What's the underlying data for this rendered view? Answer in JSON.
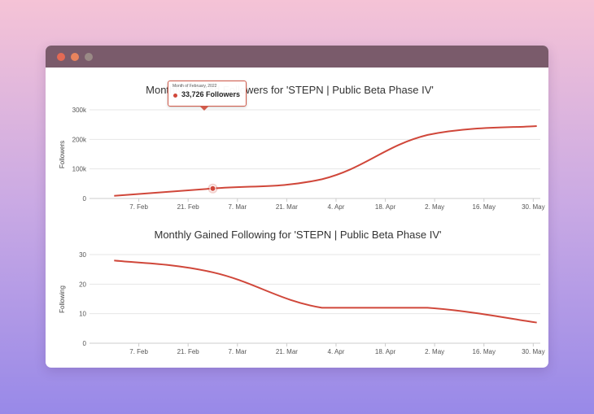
{
  "colors": {
    "line": "#d0473a",
    "grid": "#e6e6e6"
  },
  "tooltip": {
    "header": "Month of February, 2022",
    "value": "33,726 Followers"
  },
  "chart_data": [
    {
      "type": "line",
      "title": "Monthly Gained Followers for 'STEPN | Public Beta Phase IV'",
      "ylabel": "Followers",
      "xlabel": "",
      "ylim": [
        0,
        300000
      ],
      "yticks": [
        0,
        100000,
        200000,
        300000
      ],
      "ytick_labels": [
        "0",
        "100k",
        "200k",
        "300k"
      ],
      "xtick_labels": [
        "7. Feb",
        "21. Feb",
        "7. Mar",
        "21. Mar",
        "4. Apr",
        "18. Apr",
        "2. May",
        "16. May",
        "30. May"
      ],
      "grid": true,
      "series": [
        {
          "x": [
            "2022-01-31",
            "2022-02-28",
            "2022-03-31",
            "2022-04-30",
            "2022-05-31"
          ],
          "y": [
            9000,
            33726,
            65000,
            215000,
            245000
          ]
        }
      ],
      "highlight": {
        "x": "2022-02-28",
        "y": 33726
      }
    },
    {
      "type": "line",
      "title": "Monthly Gained Following for 'STEPN | Public Beta Phase IV'",
      "ylabel": "Following",
      "xlabel": "",
      "ylim": [
        0,
        30
      ],
      "yticks": [
        0,
        10,
        20,
        30
      ],
      "ytick_labels": [
        "0",
        "10",
        "20",
        "30"
      ],
      "xtick_labels": [
        "7. Feb",
        "21. Feb",
        "7. Mar",
        "21. Mar",
        "4. Apr",
        "18. Apr",
        "2. May",
        "16. May",
        "30. May"
      ],
      "grid": true,
      "series": [
        {
          "x": [
            "2022-01-31",
            "2022-02-28",
            "2022-03-31",
            "2022-04-30",
            "2022-05-31"
          ],
          "y": [
            28,
            24,
            12,
            12,
            7
          ]
        }
      ]
    }
  ]
}
